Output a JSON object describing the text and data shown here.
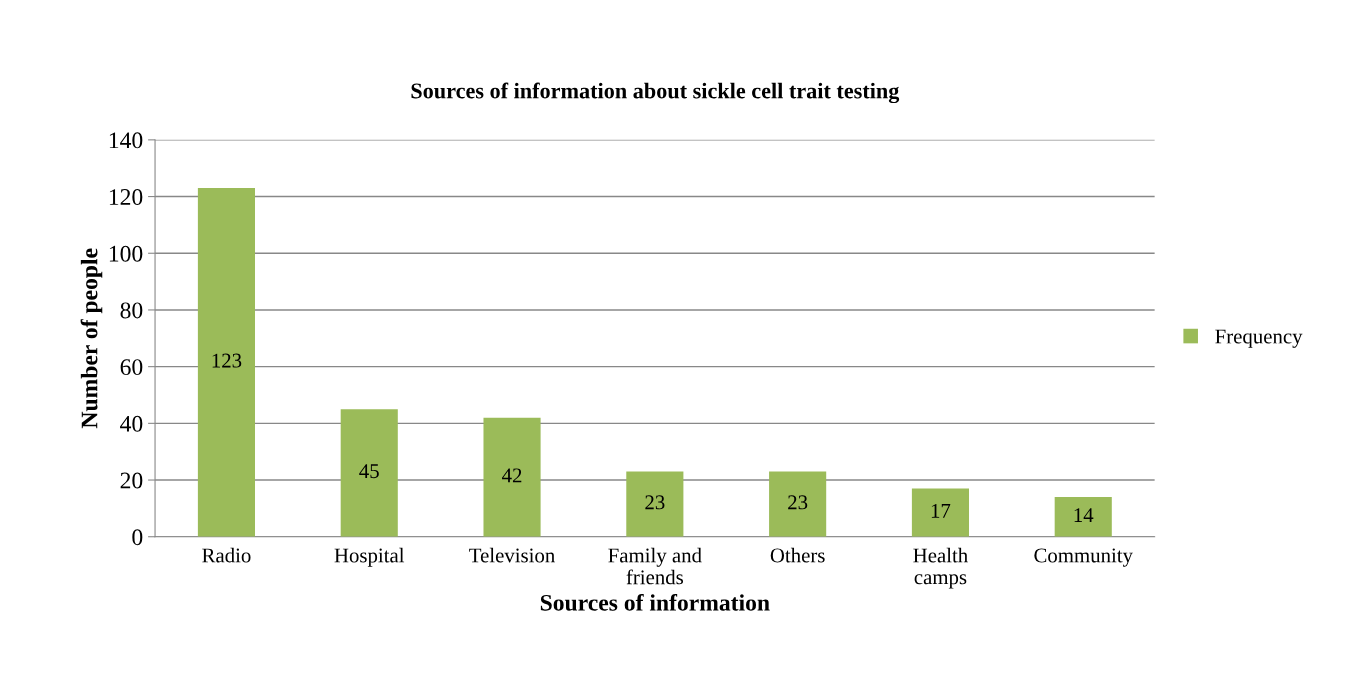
{
  "chart_data": {
    "type": "bar",
    "title": "Sources of information about sickle cell trait testing",
    "xlabel": "Sources of information",
    "ylabel": "Number of people",
    "categories": [
      "Radio",
      "Hospital",
      "Television",
      "Family and\nfriends",
      "Others",
      "Health\ncamps",
      "Community"
    ],
    "series": [
      {
        "name": "Frequency",
        "color": "#9bbb59",
        "values": [
          123,
          45,
          42,
          23,
          23,
          17,
          14
        ]
      }
    ],
    "ylim": [
      0,
      140
    ],
    "yticks": [
      0,
      20,
      40,
      60,
      80,
      100,
      120,
      140
    ],
    "grid": "y",
    "legend": "right",
    "data_labels": true
  }
}
